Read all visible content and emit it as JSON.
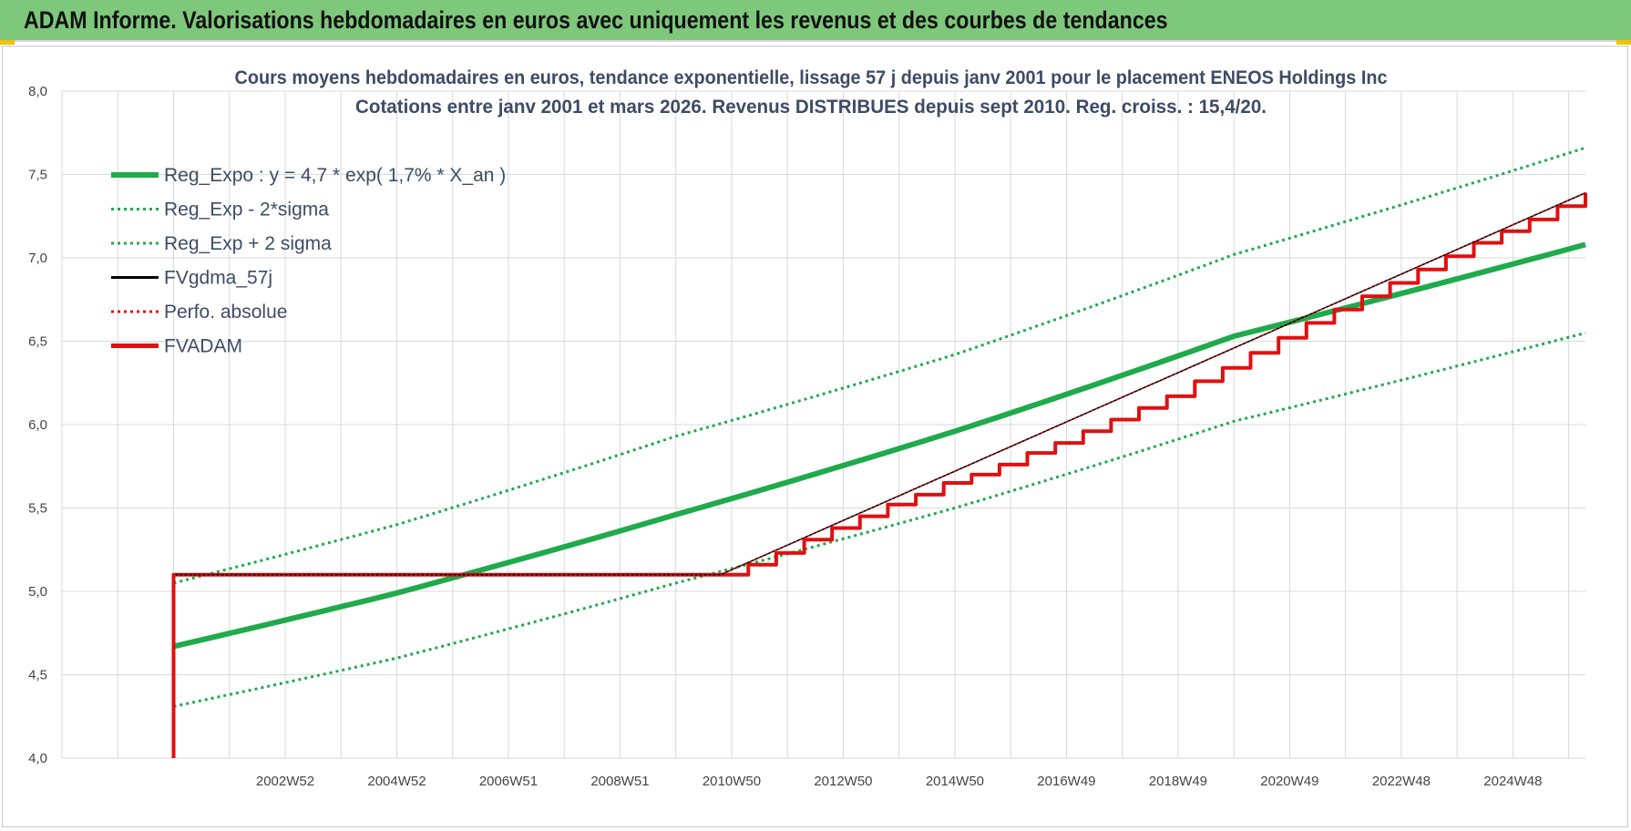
{
  "header": {
    "title": "ADAM Informe. Valorisations hebdomadaires en euros avec uniquement les revenus et des courbes de tendances"
  },
  "colors": {
    "header_bg": "#7dc87a",
    "reg_green": "#1faa4b",
    "fv_red": "#e01010",
    "gdma_black": "#000000",
    "grid": "#d9d9d9",
    "title_text": "#3e4b66"
  },
  "chart_data": {
    "type": "line",
    "title": "Cours moyens hebdomadaires en euros, tendance exponentielle, lissage 57 j depuis janv 2001 pour le placement ENEOS Holdings Inc",
    "subtitle": "Cotations entre janv 2001 et mars 2026. Revenus DISTRIBUES depuis sept 2010. Reg. croiss. : 15,4/20.",
    "xlabel": "",
    "ylabel": "",
    "ylim": [
      4.0,
      8.0
    ],
    "xlim": [
      1999.0,
      2026.3
    ],
    "y_ticks": [
      "4,0",
      "4,5",
      "5,0",
      "5,5",
      "6,0",
      "6,5",
      "7,0",
      "7,5",
      "8,0"
    ],
    "x_ticks": [
      {
        "label": "2002W52",
        "x": 2003.0
      },
      {
        "label": "2004W52",
        "x": 2005.0
      },
      {
        "label": "2006W51",
        "x": 2007.0
      },
      {
        "label": "2008W51",
        "x": 2009.0
      },
      {
        "label": "2010W50",
        "x": 2011.0
      },
      {
        "label": "2012W50",
        "x": 2013.0
      },
      {
        "label": "2014W50",
        "x": 2015.0
      },
      {
        "label": "2016W49",
        "x": 2017.0
      },
      {
        "label": "2018W49",
        "x": 2019.0
      },
      {
        "label": "2020W49",
        "x": 2021.0
      },
      {
        "label": "2022W48",
        "x": 2023.0
      },
      {
        "label": "2024W48",
        "x": 2025.0
      }
    ],
    "grid": true,
    "legend_position": "top-left",
    "series": [
      {
        "name": "Reg_Expo : y = 4,7 * exp( 1,7% *  X_an )",
        "style": "solid-thick",
        "color": "#1faa4b",
        "x": [
          2001.0,
          2005.0,
          2010.0,
          2015.0,
          2020.0,
          2026.3
        ],
        "values": [
          4.67,
          4.99,
          5.46,
          5.96,
          6.53,
          7.08
        ]
      },
      {
        "name": "Reg_Exp - 2*sigma",
        "style": "dotted",
        "color": "#1faa4b",
        "x": [
          2001.0,
          2005.0,
          2010.0,
          2015.0,
          2020.0,
          2026.3
        ],
        "values": [
          4.31,
          4.6,
          5.05,
          5.5,
          6.02,
          6.55
        ]
      },
      {
        "name": "Reg_Exp + 2 sigma",
        "style": "dotted",
        "color": "#1faa4b",
        "x": [
          2001.0,
          2005.0,
          2010.0,
          2015.0,
          2020.0,
          2026.3
        ],
        "values": [
          5.05,
          5.4,
          5.93,
          6.42,
          7.02,
          7.66
        ]
      },
      {
        "name": "FVgdma_57j",
        "style": "solid-thin",
        "color": "#000000",
        "x": [
          2001.0,
          2010.8,
          2026.3
        ],
        "values": [
          5.1,
          5.1,
          7.39
        ]
      },
      {
        "name": "Perfo. absolue",
        "style": "dotted",
        "color": "#e01010",
        "x": [
          2001.0,
          2010.8,
          2026.3
        ],
        "values": [
          5.1,
          5.1,
          7.39
        ]
      },
      {
        "name": "FVADAM",
        "style": "step",
        "color": "#e01010",
        "x": [
          2001.0,
          2001.0,
          2010.8,
          2011.3,
          2011.8,
          2012.3,
          2012.8,
          2013.3,
          2013.8,
          2014.3,
          2014.8,
          2015.3,
          2015.8,
          2016.3,
          2016.8,
          2017.3,
          2017.8,
          2018.3,
          2018.8,
          2019.3,
          2019.8,
          2020.3,
          2020.8,
          2021.3,
          2021.8,
          2022.3,
          2022.8,
          2023.3,
          2023.8,
          2024.3,
          2024.8,
          2025.3,
          2025.8,
          2026.3
        ],
        "values": [
          4.0,
          5.1,
          5.1,
          5.16,
          5.23,
          5.31,
          5.38,
          5.45,
          5.52,
          5.58,
          5.65,
          5.7,
          5.76,
          5.83,
          5.89,
          5.96,
          6.03,
          6.1,
          6.17,
          6.26,
          6.34,
          6.43,
          6.52,
          6.61,
          6.69,
          6.77,
          6.85,
          6.93,
          7.01,
          7.09,
          7.16,
          7.23,
          7.31,
          7.39
        ]
      }
    ]
  }
}
